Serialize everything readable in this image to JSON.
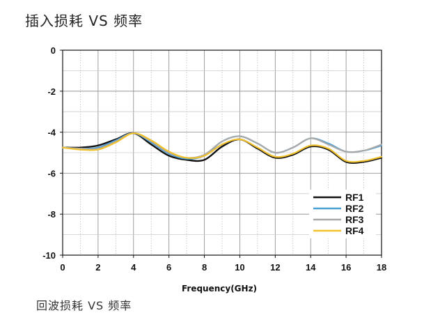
{
  "title": "插入损耗 VS 频率",
  "footer_text": "回波损耗 VS 频率",
  "chart_data": {
    "type": "line",
    "title": "插入损耗 VS 频率",
    "xlabel": "Frequency(GHz)",
    "ylabel": "",
    "xlim": [
      0,
      18
    ],
    "ylim": [
      -10,
      0
    ],
    "xticks": [
      0,
      2,
      4,
      6,
      8,
      10,
      12,
      14,
      16,
      18
    ],
    "yticks": [
      0,
      -2,
      -4,
      -6,
      -8,
      -10
    ],
    "grid": true,
    "legend_position": "bottom-right",
    "series": [
      {
        "name": "RF1",
        "color": "#111111",
        "x": [
          0,
          1,
          2,
          3,
          4,
          5,
          6,
          7,
          8,
          9,
          10,
          11,
          12,
          13,
          14,
          15,
          16,
          17,
          18
        ],
        "y": [
          -4.75,
          -4.75,
          -4.65,
          -4.35,
          -4.05,
          -4.6,
          -5.15,
          -5.35,
          -5.35,
          -4.7,
          -4.35,
          -4.8,
          -5.25,
          -5.1,
          -4.7,
          -4.85,
          -5.45,
          -5.45,
          -5.25
        ]
      },
      {
        "name": "RF2",
        "color": "#4a9fd4",
        "x": [
          0,
          1,
          2,
          3,
          4,
          5,
          6,
          7,
          8,
          9,
          10,
          11,
          12,
          13,
          14,
          15,
          16,
          17,
          18
        ],
        "y": [
          -4.75,
          -4.8,
          -4.75,
          -4.4,
          -4.05,
          -4.5,
          -5.05,
          -5.3,
          -5.15,
          -4.45,
          -4.2,
          -4.55,
          -5.0,
          -4.75,
          -4.3,
          -4.55,
          -4.95,
          -4.9,
          -4.65
        ]
      },
      {
        "name": "RF3",
        "color": "#a8a8a8",
        "x": [
          0,
          1,
          2,
          3,
          4,
          5,
          6,
          7,
          8,
          9,
          10,
          11,
          12,
          13,
          14,
          15,
          16,
          17,
          18
        ],
        "y": [
          -4.75,
          -4.8,
          -4.8,
          -4.45,
          -4.05,
          -4.45,
          -5.0,
          -5.25,
          -5.1,
          -4.45,
          -4.2,
          -4.55,
          -5.0,
          -4.75,
          -4.3,
          -4.6,
          -4.95,
          -4.9,
          -4.6
        ]
      },
      {
        "name": "RF4",
        "color": "#f2c12e",
        "x": [
          0,
          1,
          2,
          3,
          4,
          5,
          6,
          7,
          8,
          9,
          10,
          11,
          12,
          13,
          14,
          15,
          16,
          17,
          18
        ],
        "y": [
          -4.75,
          -4.85,
          -4.85,
          -4.5,
          -4.05,
          -4.4,
          -4.95,
          -5.25,
          -5.15,
          -4.6,
          -4.35,
          -4.75,
          -5.2,
          -5.05,
          -4.65,
          -4.8,
          -5.4,
          -5.4,
          -5.2
        ]
      }
    ]
  }
}
